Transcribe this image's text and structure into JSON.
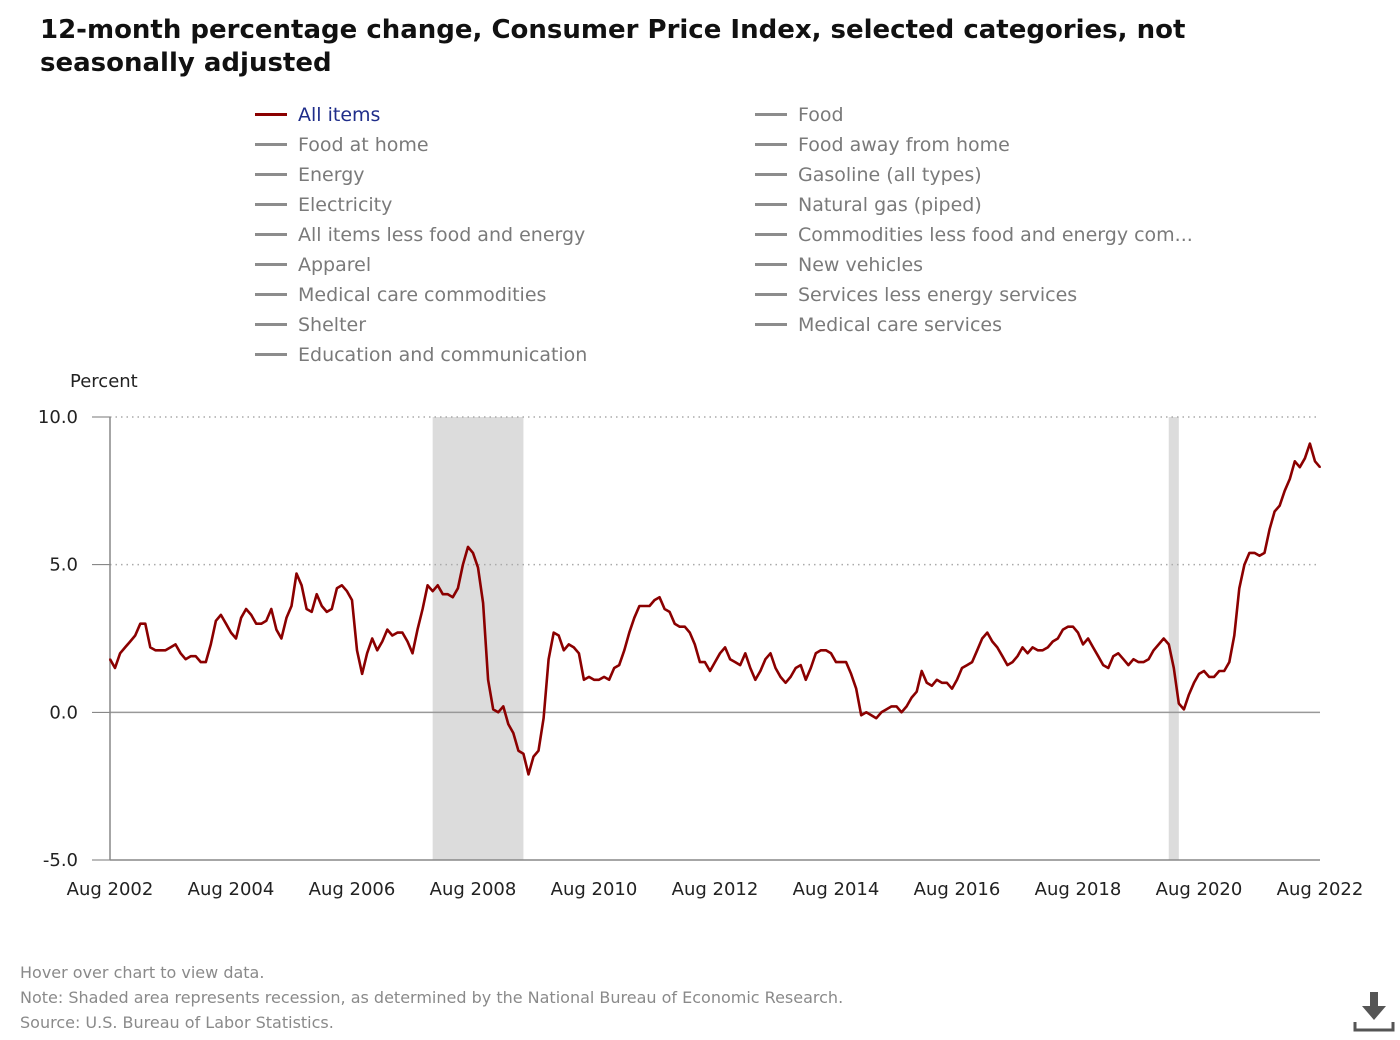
{
  "title": "12-month percentage change, Consumer Price Index, selected categories, not seasonally adjusted",
  "legend": {
    "items": [
      {
        "label": "All items",
        "active": true
      },
      {
        "label": "Food",
        "active": false
      },
      {
        "label": "Food at home",
        "active": false
      },
      {
        "label": "Food away from home",
        "active": false
      },
      {
        "label": "Energy",
        "active": false
      },
      {
        "label": "Gasoline (all types)",
        "active": false
      },
      {
        "label": "Electricity",
        "active": false
      },
      {
        "label": "Natural gas (piped)",
        "active": false
      },
      {
        "label": "All items less food and energy",
        "active": false
      },
      {
        "label": "Commodities less food and energy com...",
        "active": false
      },
      {
        "label": "Apparel",
        "active": false
      },
      {
        "label": "New vehicles",
        "active": false
      },
      {
        "label": "Medical care commodities",
        "active": false
      },
      {
        "label": "Services less energy services",
        "active": false
      },
      {
        "label": "Shelter",
        "active": false
      },
      {
        "label": "Medical care services",
        "active": false
      },
      {
        "label": "Education and communication",
        "active": false
      }
    ]
  },
  "chart_data": {
    "type": "line",
    "ylabel": "Percent",
    "ylim": [
      -5,
      10
    ],
    "yticks": [
      -5,
      0,
      5,
      10
    ],
    "ytick_labels": [
      "-5.0",
      "0.0",
      "5.0",
      "10.0"
    ],
    "x_start": "2002-08",
    "x_end": "2022-08",
    "xtick_labels": [
      "Aug 2002",
      "Aug 2004",
      "Aug 2006",
      "Aug 2008",
      "Aug 2010",
      "Aug 2012",
      "Aug 2014",
      "Aug 2016",
      "Aug 2018",
      "Aug 2020",
      "Aug 2022"
    ],
    "grid": "dotted horizontal at 5.0 and 10.0, solid zero line",
    "recessions": [
      {
        "start": "2007-12",
        "end": "2009-06"
      },
      {
        "start": "2020-02",
        "end": "2020-04"
      }
    ],
    "series": [
      {
        "name": "All items",
        "color": "#8b0000",
        "values": [
          1.8,
          1.5,
          2.0,
          2.2,
          2.4,
          2.6,
          3.0,
          3.0,
          2.2,
          2.1,
          2.1,
          2.1,
          2.2,
          2.3,
          2.0,
          1.8,
          1.9,
          1.9,
          1.7,
          1.7,
          2.3,
          3.1,
          3.3,
          3.0,
          2.7,
          2.5,
          3.2,
          3.5,
          3.3,
          3.0,
          3.0,
          3.1,
          3.5,
          2.8,
          2.5,
          3.2,
          3.6,
          4.7,
          4.3,
          3.5,
          3.4,
          4.0,
          3.6,
          3.4,
          3.5,
          4.2,
          4.3,
          4.1,
          3.8,
          2.1,
          1.3,
          2.0,
          2.5,
          2.1,
          2.4,
          2.8,
          2.6,
          2.7,
          2.7,
          2.4,
          2.0,
          2.8,
          3.5,
          4.3,
          4.1,
          4.3,
          4.0,
          4.0,
          3.9,
          4.2,
          5.0,
          5.6,
          5.4,
          4.9,
          3.7,
          1.1,
          0.1,
          0.0,
          0.2,
          -0.4,
          -0.7,
          -1.3,
          -1.4,
          -2.1,
          -1.5,
          -1.3,
          -0.2,
          1.8,
          2.7,
          2.6,
          2.1,
          2.3,
          2.2,
          2.0,
          1.1,
          1.2,
          1.1,
          1.1,
          1.2,
          1.1,
          1.5,
          1.6,
          2.1,
          2.7,
          3.2,
          3.6,
          3.6,
          3.6,
          3.8,
          3.9,
          3.5,
          3.4,
          3.0,
          2.9,
          2.9,
          2.7,
          2.3,
          1.7,
          1.7,
          1.4,
          1.7,
          2.0,
          2.2,
          1.8,
          1.7,
          1.6,
          2.0,
          1.5,
          1.1,
          1.4,
          1.8,
          2.0,
          1.5,
          1.2,
          1.0,
          1.2,
          1.5,
          1.6,
          1.1,
          1.5,
          2.0,
          2.1,
          2.1,
          2.0,
          1.7,
          1.7,
          1.7,
          1.3,
          0.8,
          -0.1,
          0.0,
          -0.1,
          -0.2,
          0.0,
          0.1,
          0.2,
          0.2,
          0.0,
          0.2,
          0.5,
          0.7,
          1.4,
          1.0,
          0.9,
          1.1,
          1.0,
          1.0,
          0.8,
          1.1,
          1.5,
          1.6,
          1.7,
          2.1,
          2.5,
          2.7,
          2.4,
          2.2,
          1.9,
          1.6,
          1.7,
          1.9,
          2.2,
          2.0,
          2.2,
          2.1,
          2.1,
          2.2,
          2.4,
          2.5,
          2.8,
          2.9,
          2.9,
          2.7,
          2.3,
          2.5,
          2.2,
          1.9,
          1.6,
          1.5,
          1.9,
          2.0,
          1.8,
          1.6,
          1.8,
          1.7,
          1.7,
          1.8,
          2.1,
          2.3,
          2.5,
          2.3,
          1.5,
          0.3,
          0.1,
          0.6,
          1.0,
          1.3,
          1.4,
          1.2,
          1.2,
          1.4,
          1.4,
          1.7,
          2.6,
          4.2,
          5.0,
          5.4,
          5.4,
          5.3,
          5.4,
          6.2,
          6.8,
          7.0,
          7.5,
          7.9,
          8.5,
          8.3,
          8.6,
          9.1,
          8.5,
          8.3
        ]
      }
    ]
  },
  "notes": [
    "Hover over chart to view data.",
    "Note: Shaded area represents recession, as determined by the National Bureau of Economic Research.",
    "Source: U.S. Bureau of Labor Statistics."
  ],
  "icons": {
    "download": "download-icon"
  }
}
